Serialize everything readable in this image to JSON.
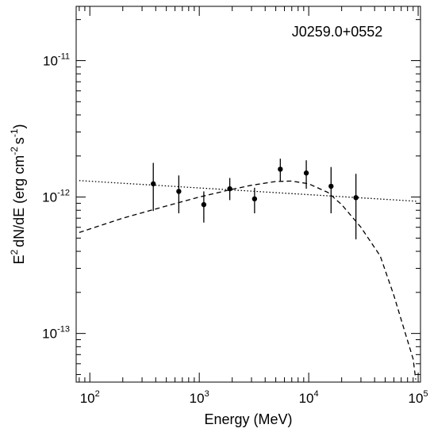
{
  "chart_data": {
    "type": "scatter",
    "title": "J0259.0+0552",
    "xlabel": "Energy (MeV)",
    "ylabel": {
      "p1": "E",
      "p1sup": "2",
      "p2": "dN/dE (erg cm",
      "p2sup": "-2",
      "p3": "s",
      "p3sup": "-1",
      "p4": ")"
    },
    "xscale": "log",
    "yscale": "log",
    "xlim": [
      75,
      105000
    ],
    "ylim": [
      4.4e-14,
      2.5e-11
    ],
    "grid": false,
    "xticks": [
      {
        "value": 100,
        "base": "10",
        "exp": "2"
      },
      {
        "value": 1000,
        "base": "10",
        "exp": "3"
      },
      {
        "value": 10000,
        "base": "10",
        "exp": "4"
      },
      {
        "value": 100000,
        "base": "10",
        "exp": "5"
      }
    ],
    "yticks": [
      {
        "value": 1e-13,
        "base": "10",
        "exp": "-13"
      },
      {
        "value": 1e-12,
        "base": "10",
        "exp": "-12"
      },
      {
        "value": 1e-11,
        "base": "10",
        "exp": "-11"
      }
    ],
    "series": [
      {
        "kind": "points",
        "x": [
          380,
          650,
          1100,
          1900,
          3200,
          5500,
          9500,
          16000,
          27000
        ],
        "y": [
          1.25e-12,
          1.1e-12,
          8.8e-13,
          1.15e-12,
          9.7e-13,
          1.6e-12,
          1.5e-12,
          1.2e-12,
          9.9e-13
        ],
        "yerr_low": [
          7.9e-13,
          7.6e-13,
          6.5e-13,
          9.5e-13,
          7.6e-13,
          1.3e-12,
          1.15e-12,
          7.6e-13,
          4.9e-13
        ],
        "yerr_high": [
          1.78e-12,
          1.44e-12,
          1.1e-12,
          1.38e-12,
          1.17e-12,
          1.91e-12,
          1.86e-12,
          1.66e-12,
          1.48e-12
        ]
      },
      {
        "kind": "dotted-line",
        "x": [
          80,
          100000
        ],
        "y": [
          1.32e-12,
          9.3e-13
        ]
      },
      {
        "kind": "dashed-line",
        "x": [
          80,
          200,
          500,
          1000,
          2000,
          3000,
          5000,
          7000,
          10000,
          15000,
          20000,
          30000,
          45000,
          60000,
          75000,
          90000,
          95000
        ],
        "y": [
          5.5e-13,
          7e-13,
          8.6e-13,
          1e-12,
          1.14e-12,
          1.22e-12,
          1.3e-12,
          1.31e-12,
          1.25e-12,
          1.08e-12,
          8.8e-13,
          6e-13,
          3.7e-13,
          1.9e-13,
          1.05e-13,
          6.5e-14,
          4.6e-14
        ]
      }
    ]
  }
}
